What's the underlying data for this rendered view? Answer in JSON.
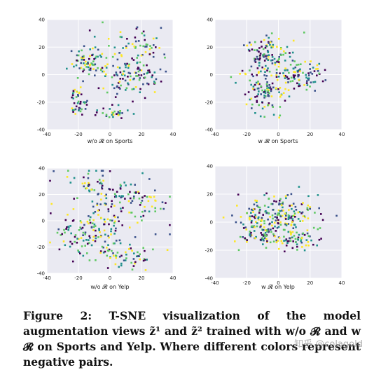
{
  "caption": "Figure 2: T-SNE visualization of the model augmentation views z̃¹ and z̃² trained with w/o 𝓡 and w 𝓡 on Sports and Yelp. Where different colors represent negative pairs.",
  "watermark": "知乎 @colagold",
  "palette": [
    "#440154",
    "#3b528b",
    "#21918c",
    "#5ec962",
    "#fde725"
  ],
  "chart_data": [
    {
      "type": "scatter",
      "label": "w/o 𝓡 on Sports",
      "xlim": [
        -40,
        40
      ],
      "ylim": [
        -40,
        40
      ],
      "xticks": [
        -40,
        -20,
        0,
        20,
        40
      ],
      "yticks": [
        -40,
        -20,
        0,
        20,
        40
      ],
      "clusters": [
        {
          "cx": -15,
          "cy": 10,
          "sx": 5,
          "sy": 5,
          "n": 55
        },
        {
          "cx": -20,
          "cy": -18,
          "sx": 3,
          "sy": 7,
          "n": 45
        },
        {
          "cx": 2,
          "cy": -27,
          "sx": 5,
          "sy": 3,
          "n": 30
        },
        {
          "cx": 15,
          "cy": 0,
          "sx": 9,
          "sy": 7,
          "n": 90
        },
        {
          "cx": 20,
          "cy": 22,
          "sx": 9,
          "sy": 6,
          "n": 50
        },
        {
          "cx": 0,
          "cy": 10,
          "sx": 14,
          "sy": 14,
          "n": 40
        }
      ]
    },
    {
      "type": "scatter",
      "label": "w 𝓡 on Sports",
      "xlim": [
        -40,
        40
      ],
      "ylim": [
        -40,
        40
      ],
      "xticks": [
        -40,
        -20,
        0,
        20,
        40
      ],
      "yticks": [
        -40,
        -20,
        0,
        20,
        40
      ],
      "clusters": [
        {
          "cx": -8,
          "cy": 15,
          "sx": 6,
          "sy": 7,
          "n": 90
        },
        {
          "cx": -8,
          "cy": -12,
          "sx": 6,
          "sy": 8,
          "n": 90
        },
        {
          "cx": 12,
          "cy": 0,
          "sx": 8,
          "sy": 5,
          "n": 90
        },
        {
          "cx": 0,
          "cy": 0,
          "sx": 14,
          "sy": 12,
          "n": 40
        }
      ]
    },
    {
      "type": "scatter",
      "label": "w/o 𝓡 on Yelp",
      "xlim": [
        -40,
        40
      ],
      "ylim": [
        -40,
        40
      ],
      "xticks": [
        -40,
        -20,
        0,
        20,
        40
      ],
      "yticks": [
        -40,
        -20,
        0,
        20,
        40
      ],
      "clusters": [
        {
          "cx": -22,
          "cy": -10,
          "sx": 7,
          "sy": 8,
          "n": 50
        },
        {
          "cx": -5,
          "cy": -10,
          "sx": 6,
          "sy": 10,
          "n": 60
        },
        {
          "cx": 10,
          "cy": -28,
          "sx": 9,
          "sy": 4,
          "n": 50
        },
        {
          "cx": 15,
          "cy": 15,
          "sx": 11,
          "sy": 9,
          "n": 70
        },
        {
          "cx": -10,
          "cy": 25,
          "sx": 12,
          "sy": 9,
          "n": 60
        },
        {
          "cx": 0,
          "cy": 5,
          "sx": 18,
          "sy": 18,
          "n": 40
        }
      ]
    },
    {
      "type": "scatter",
      "label": "w 𝓡 on Yelp",
      "xlim": [
        -40,
        40
      ],
      "ylim": [
        -40,
        40
      ],
      "xticks": [
        -40,
        -20,
        0,
        20,
        40
      ],
      "yticks": [
        -40,
        -20,
        0,
        20,
        40
      ],
      "clusters": [
        {
          "cx": 0,
          "cy": 5,
          "sx": 12,
          "sy": 6,
          "n": 170
        },
        {
          "cx": -12,
          "cy": -10,
          "sx": 7,
          "sy": 5,
          "n": 60
        },
        {
          "cx": 10,
          "cy": -13,
          "sx": 7,
          "sy": 4,
          "n": 60
        },
        {
          "cx": 0,
          "cy": 0,
          "sx": 14,
          "sy": 10,
          "n": 40
        }
      ]
    }
  ]
}
